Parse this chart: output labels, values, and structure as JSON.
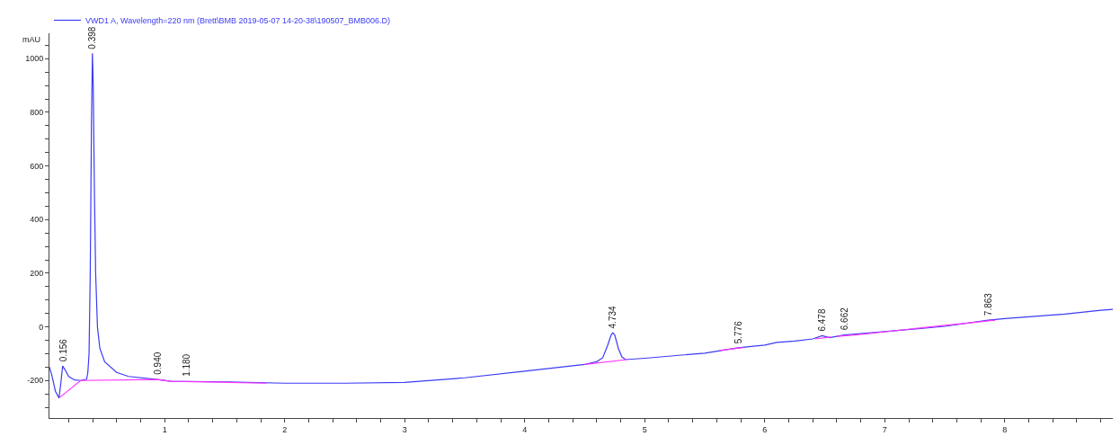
{
  "chart_data": {
    "type": "line",
    "ylabel": "mAU",
    "legend": "top left",
    "marker": "none",
    "line_style": "solid",
    "xlim": [
      0.04,
      8.9
    ],
    "ylim": [
      -340,
      1095
    ],
    "xticks": [
      {
        "value": 0.2,
        "label": null
      },
      {
        "value": 0.4,
        "label": null
      },
      {
        "value": 0.6,
        "label": null
      },
      {
        "value": 0.8,
        "label": null
      },
      1,
      {
        "value": 1.2,
        "label": null
      },
      {
        "value": 1.4,
        "label": null
      },
      {
        "value": 1.6,
        "label": null
      },
      {
        "value": 1.8,
        "label": null
      },
      2,
      {
        "value": 2.2,
        "label": null
      },
      {
        "value": 2.4,
        "label": null
      },
      {
        "value": 2.6,
        "label": null
      },
      {
        "value": 2.8,
        "label": null
      },
      3,
      {
        "value": 3.2,
        "label": null
      },
      {
        "value": 3.4,
        "label": null
      },
      {
        "value": 3.6,
        "label": null
      },
      {
        "value": 3.8,
        "label": null
      },
      4,
      {
        "value": 4.2,
        "label": null
      },
      {
        "value": 4.4,
        "label": null
      },
      {
        "value": 4.6,
        "label": null
      },
      {
        "value": 4.8,
        "label": null
      },
      5,
      {
        "value": 5.2,
        "label": null
      },
      {
        "value": 5.4,
        "label": null
      },
      {
        "value": 5.6,
        "label": null
      },
      {
        "value": 5.8,
        "label": null
      },
      6,
      {
        "value": 6.2,
        "label": null
      },
      {
        "value": 6.4,
        "label": null
      },
      {
        "value": 6.6,
        "label": null
      },
      {
        "value": 6.8,
        "label": null
      },
      7,
      {
        "value": 7.2,
        "label": null
      },
      {
        "value": 7.4,
        "label": null
      },
      {
        "value": 7.6,
        "label": null
      },
      {
        "value": 7.8,
        "label": null
      },
      8,
      {
        "value": 8.2,
        "label": null
      },
      {
        "value": 8.4,
        "label": null
      },
      {
        "value": 8.6,
        "label": null
      },
      {
        "value": 8.8,
        "label": null
      }
    ],
    "yticks": [
      {
        "value": -300,
        "label": null
      },
      {
        "value": -250,
        "label": null
      },
      -200,
      {
        "value": -150,
        "label": null
      },
      {
        "value": -100,
        "label": null
      },
      {
        "value": -50,
        "label": null
      },
      0,
      {
        "value": 50,
        "label": null
      },
      {
        "value": 100,
        "label": null
      },
      {
        "value": 150,
        "label": null
      },
      200,
      {
        "value": 250,
        "label": null
      },
      {
        "value": 300,
        "label": null
      },
      {
        "value": 350,
        "label": null
      },
      400,
      {
        "value": 450,
        "label": null
      },
      {
        "value": 500,
        "label": null
      },
      {
        "value": 550,
        "label": null
      },
      600,
      {
        "value": 650,
        "label": null
      },
      {
        "value": 700,
        "label": null
      },
      {
        "value": 750,
        "label": null
      },
      800,
      {
        "value": 850,
        "label": null
      },
      {
        "value": 900,
        "label": null
      },
      {
        "value": 950,
        "label": null
      },
      1000,
      {
        "value": 1050,
        "label": null
      }
    ],
    "series": [
      {
        "name": "VWD1 A, Wavelength=220 nm (Brett\\BMB 2019-05-07 14-20-38\\190507_BMB006.D)",
        "color": "#3b3bf5",
        "x": [
          0.04,
          0.06,
          0.09,
          0.12,
          0.135,
          0.15,
          0.17,
          0.2,
          0.25,
          0.3,
          0.35,
          0.36,
          0.37,
          0.38,
          0.39,
          0.398,
          0.405,
          0.415,
          0.425,
          0.44,
          0.46,
          0.5,
          0.6,
          0.7,
          0.94,
          1.05,
          1.5,
          2,
          2.5,
          3,
          3.5,
          4,
          4.5,
          4.6,
          4.65,
          4.69,
          4.72,
          4.734,
          4.75,
          4.78,
          4.81,
          4.84,
          5,
          5.5,
          5.776,
          6,
          6.1,
          6.25,
          6.4,
          6.478,
          6.54,
          6.662,
          7,
          7.5,
          7.863,
          8,
          8.5,
          8.8,
          8.9
        ],
        "values": [
          -150,
          -180,
          -240,
          -265,
          -210,
          -146,
          -160,
          -185,
          -198,
          -200,
          -195,
          -170,
          -100,
          200,
          750,
          1020,
          900,
          500,
          200,
          0,
          -80,
          -130,
          -170,
          -185,
          -196,
          -203,
          -205,
          -210,
          -210,
          -207,
          -190,
          -165,
          -140,
          -130,
          -115,
          -70,
          -30,
          -22,
          -30,
          -80,
          -112,
          -122,
          -117,
          -98,
          -78,
          -68,
          -58,
          -53,
          -45,
          -33,
          -40,
          -30,
          -18,
          2,
          25,
          31,
          48,
          62,
          65
        ]
      },
      {
        "color": "#ff33ff",
        "x": [
          0.12,
          0.3,
          0.94,
          1.05,
          1.85,
          2.0,
          4.5,
          4.85,
          4.9,
          5.62,
          5.82,
          5.9,
          6.42,
          6.55,
          6.58,
          6.6,
          6.75,
          7.92
        ],
        "values": [
          -265,
          -200,
          -196,
          -203,
          -210,
          null,
          -140,
          -122,
          null,
          -88,
          -77,
          null,
          -45,
          -38,
          null,
          -35,
          -30,
          25
        ]
      }
    ],
    "annotations": [
      {
        "text": "0.156",
        "x": 0.156,
        "y": -146
      },
      {
        "text": "0.398",
        "x": 0.398,
        "y": 1020
      },
      {
        "text": "0.940",
        "x": 0.94,
        "y": -196
      },
      {
        "text": "1.180",
        "x": 1.18,
        "y": -203
      },
      {
        "text": "4.734",
        "x": 4.734,
        "y": -22
      },
      {
        "text": "5.776",
        "x": 5.776,
        "y": -78
      },
      {
        "text": "6.478",
        "x": 6.478,
        "y": -33
      },
      {
        "text": "6.662",
        "x": 6.662,
        "y": -30
      },
      {
        "text": "7.863",
        "x": 7.863,
        "y": 25
      }
    ]
  }
}
